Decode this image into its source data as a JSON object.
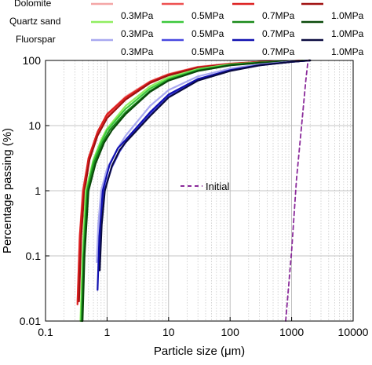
{
  "chart_data": {
    "type": "line",
    "xlabel": "Particle size (μm)",
    "ylabel": "Percentage passing (%)",
    "x_scale": "log",
    "y_scale": "log",
    "xlim": [
      0.1,
      10000
    ],
    "ylim": [
      0.01,
      100
    ],
    "x_ticks": [
      {
        "v": 0.1,
        "label": "0.1"
      },
      {
        "v": 1,
        "label": "1"
      },
      {
        "v": 10,
        "label": "10"
      },
      {
        "v": 100,
        "label": "100"
      },
      {
        "v": 1000,
        "label": "1000"
      },
      {
        "v": 10000,
        "label": "10000"
      }
    ],
    "y_ticks": [
      {
        "v": 0.01,
        "label": "0.01"
      },
      {
        "v": 0.1,
        "label": "0.1"
      },
      {
        "v": 1,
        "label": "1"
      },
      {
        "v": 10,
        "label": "10"
      },
      {
        "v": 100,
        "label": "100"
      }
    ],
    "grid": "major solid, minor dotted",
    "legend": {
      "groups": [
        "Dolomite",
        "Quartz sand",
        "Fluorspar"
      ],
      "pressures": [
        "0.3MPa",
        "0.5MPa",
        "0.7MPa",
        "1.0MPa"
      ],
      "initial_label": "Initial"
    },
    "series": [
      {
        "group": "Dolomite",
        "pressure": "0.3MPa",
        "color": "#f4a6a6",
        "points": [
          [
            0.33,
            0.02
          ],
          [
            0.36,
            0.2
          ],
          [
            0.4,
            1
          ],
          [
            0.5,
            3
          ],
          [
            0.7,
            8
          ],
          [
            1,
            15
          ],
          [
            2,
            28
          ],
          [
            5,
            48
          ],
          [
            10,
            62
          ],
          [
            30,
            80
          ],
          [
            100,
            90
          ],
          [
            300,
            95
          ],
          [
            1000,
            98
          ],
          [
            2000,
            100
          ]
        ]
      },
      {
        "group": "Dolomite",
        "pressure": "0.5MPa",
        "color": "#ee5050",
        "points": [
          [
            0.34,
            0.02
          ],
          [
            0.37,
            0.2
          ],
          [
            0.42,
            1
          ],
          [
            0.5,
            3
          ],
          [
            0.7,
            7.5
          ],
          [
            1,
            14
          ],
          [
            2,
            26
          ],
          [
            5,
            46
          ],
          [
            10,
            60
          ],
          [
            30,
            78
          ],
          [
            100,
            89
          ],
          [
            300,
            95
          ],
          [
            1000,
            98
          ],
          [
            2000,
            100
          ]
        ]
      },
      {
        "group": "Dolomite",
        "pressure": "0.7MPa",
        "color": "#dd2020",
        "points": [
          [
            0.33,
            0.018
          ],
          [
            0.36,
            0.2
          ],
          [
            0.41,
            1
          ],
          [
            0.5,
            3.2
          ],
          [
            0.7,
            8
          ],
          [
            1,
            15
          ],
          [
            2,
            27
          ],
          [
            5,
            47
          ],
          [
            10,
            61
          ],
          [
            30,
            79
          ],
          [
            100,
            89
          ],
          [
            300,
            95
          ],
          [
            1000,
            98
          ],
          [
            2000,
            100
          ]
        ]
      },
      {
        "group": "Dolomite",
        "pressure": "1.0MPa",
        "color": "#a01010",
        "points": [
          [
            0.35,
            0.02
          ],
          [
            0.38,
            0.2
          ],
          [
            0.43,
            1
          ],
          [
            0.52,
            3
          ],
          [
            0.7,
            7
          ],
          [
            1,
            13
          ],
          [
            2,
            25
          ],
          [
            5,
            45
          ],
          [
            10,
            59
          ],
          [
            30,
            77
          ],
          [
            100,
            88
          ],
          [
            300,
            94
          ],
          [
            1000,
            98
          ],
          [
            2000,
            100
          ]
        ]
      },
      {
        "group": "Quartz sand",
        "pressure": "0.3MPa",
        "color": "#90ee60",
        "points": [
          [
            0.37,
            0.01
          ],
          [
            0.4,
            0.1
          ],
          [
            0.45,
            1
          ],
          [
            0.6,
            3
          ],
          [
            0.8,
            6
          ],
          [
            1,
            9
          ],
          [
            2,
            20
          ],
          [
            5,
            40
          ],
          [
            10,
            55
          ],
          [
            30,
            74
          ],
          [
            100,
            87
          ],
          [
            300,
            93
          ],
          [
            1000,
            97
          ],
          [
            2000,
            100
          ]
        ]
      },
      {
        "group": "Quartz sand",
        "pressure": "0.5MPa",
        "color": "#3cc83c",
        "points": [
          [
            0.38,
            0.01
          ],
          [
            0.41,
            0.1
          ],
          [
            0.47,
            1
          ],
          [
            0.6,
            2.8
          ],
          [
            0.8,
            5.5
          ],
          [
            1,
            8.5
          ],
          [
            2,
            18
          ],
          [
            5,
            37
          ],
          [
            10,
            52
          ],
          [
            30,
            72
          ],
          [
            100,
            86
          ],
          [
            300,
            93
          ],
          [
            1000,
            97
          ],
          [
            2000,
            100
          ]
        ]
      },
      {
        "group": "Quartz sand",
        "pressure": "0.7MPa",
        "color": "#1a8a1a",
        "points": [
          [
            0.39,
            0.01
          ],
          [
            0.42,
            0.1
          ],
          [
            0.48,
            1
          ],
          [
            0.62,
            2.7
          ],
          [
            0.85,
            5.5
          ],
          [
            1.1,
            8.5
          ],
          [
            2,
            16
          ],
          [
            5,
            34
          ],
          [
            10,
            50
          ],
          [
            30,
            70
          ],
          [
            100,
            85
          ],
          [
            300,
            92
          ],
          [
            1000,
            97
          ],
          [
            2000,
            100
          ]
        ]
      },
      {
        "group": "Quartz sand",
        "pressure": "1.0MPa",
        "color": "#0a4a0a",
        "points": [
          [
            0.4,
            0.01
          ],
          [
            0.43,
            0.1
          ],
          [
            0.5,
            1
          ],
          [
            0.65,
            2.6
          ],
          [
            0.9,
            5.5
          ],
          [
            1.2,
            8.5
          ],
          [
            2,
            15
          ],
          [
            5,
            33
          ],
          [
            10,
            49
          ],
          [
            30,
            69
          ],
          [
            100,
            84
          ],
          [
            300,
            92
          ],
          [
            1000,
            97
          ],
          [
            2000,
            100
          ]
        ]
      },
      {
        "group": "Fluorspar",
        "pressure": "0.3MPa",
        "color": "#a8a8f0",
        "points": [
          [
            0.68,
            0.08
          ],
          [
            0.72,
            0.3
          ],
          [
            0.8,
            1
          ],
          [
            1,
            2.2
          ],
          [
            1.5,
            4.5
          ],
          [
            2,
            7
          ],
          [
            5,
            20
          ],
          [
            10,
            35
          ],
          [
            30,
            57
          ],
          [
            100,
            75
          ],
          [
            300,
            87
          ],
          [
            1000,
            96
          ],
          [
            2000,
            100
          ]
        ]
      },
      {
        "group": "Fluorspar",
        "pressure": "0.5MPa",
        "color": "#4848e0",
        "points": [
          [
            0.74,
            0.06
          ],
          [
            0.8,
            0.3
          ],
          [
            0.9,
            1
          ],
          [
            1.2,
            2.3
          ],
          [
            1.6,
            4
          ],
          [
            2,
            5.5
          ],
          [
            5,
            15
          ],
          [
            10,
            28
          ],
          [
            30,
            50
          ],
          [
            100,
            70
          ],
          [
            300,
            84
          ],
          [
            1000,
            95
          ],
          [
            2000,
            100
          ]
        ]
      },
      {
        "group": "Fluorspar",
        "pressure": "0.7MPa",
        "color": "#1010b0",
        "points": [
          [
            0.7,
            0.03
          ],
          [
            0.75,
            0.2
          ],
          [
            0.85,
            1
          ],
          [
            1.1,
            2.5
          ],
          [
            1.5,
            4.5
          ],
          [
            2,
            6
          ],
          [
            5,
            16
          ],
          [
            10,
            30
          ],
          [
            30,
            52
          ],
          [
            100,
            71
          ],
          [
            300,
            85
          ],
          [
            1000,
            95
          ],
          [
            2000,
            100
          ]
        ]
      },
      {
        "group": "Fluorspar",
        "pressure": "1.0MPa",
        "color": "#0a0a40",
        "points": [
          [
            0.76,
            0.06
          ],
          [
            0.82,
            0.3
          ],
          [
            0.92,
            1
          ],
          [
            1.2,
            2.4
          ],
          [
            1.6,
            4.2
          ],
          [
            2,
            5.5
          ],
          [
            5,
            14
          ],
          [
            10,
            27
          ],
          [
            30,
            49
          ],
          [
            100,
            69
          ],
          [
            300,
            84
          ],
          [
            1000,
            95
          ],
          [
            2000,
            100
          ]
        ]
      },
      {
        "group": "Initial",
        "pressure": "",
        "color": "#8a2a9a",
        "dashed": true,
        "points": [
          [
            800,
            0.01
          ],
          [
            1000,
            0.12
          ],
          [
            1200,
            1.5
          ],
          [
            1450,
            10
          ],
          [
            1700,
            50
          ],
          [
            1850,
            100
          ]
        ]
      }
    ]
  }
}
